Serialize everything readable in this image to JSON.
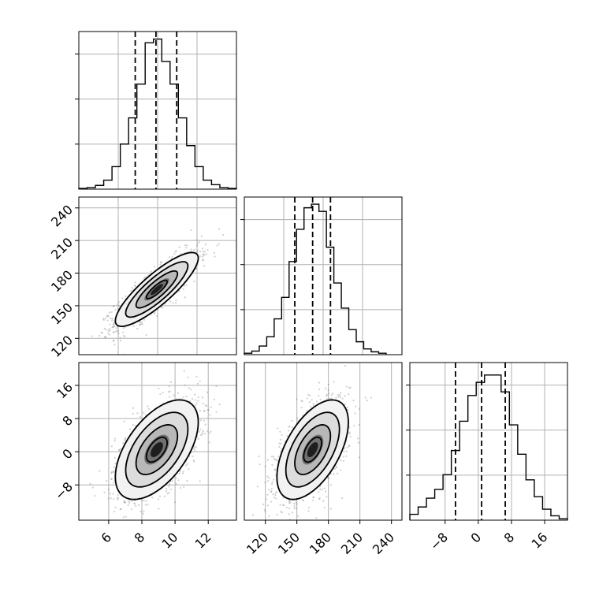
{
  "chart_data": [
    {
      "type": "histogram",
      "variable": "x",
      "bin_start": 4.2,
      "bin_width": 0.5,
      "counts": [
        1,
        2,
        5,
        12,
        30,
        60,
        95,
        140,
        195,
        200,
        170,
        140,
        95,
        58,
        30,
        12,
        6,
        2,
        1
      ],
      "quantile_lines": [
        7.6,
        8.85,
        10.1
      ],
      "xlim": [
        4.2,
        13.7
      ],
      "ylim": [
        0,
        210
      ],
      "x_ticks": [],
      "grid": true
    },
    {
      "type": "histogram",
      "variable": "y",
      "bin_start": 100,
      "bin_width": 7.1,
      "counts": [
        2,
        5,
        12,
        25,
        50,
        80,
        130,
        175,
        205,
        210,
        200,
        150,
        100,
        65,
        35,
        18,
        8,
        4,
        2
      ],
      "quantile_lines": [
        148,
        165,
        182
      ],
      "xlim": [
        100,
        250
      ],
      "ylim": [
        0,
        220
      ],
      "x_ticks": [],
      "grid": true
    },
    {
      "type": "histogram",
      "variable": "z",
      "bin_start": -16.5,
      "bin_width": 2.0,
      "counts": [
        8,
        18,
        30,
        42,
        62,
        95,
        135,
        170,
        188,
        198,
        198,
        175,
        130,
        90,
        55,
        32,
        15,
        6,
        2
      ],
      "quantile_lines": [
        -5.5,
        0.8,
        6.5
      ],
      "xlim": [
        -16.5,
        21.5
      ],
      "ylim": [
        0,
        215
      ],
      "x_ticks": [
        "−8",
        "0",
        "8",
        "16"
      ],
      "x_tick_values": [
        -8,
        0,
        8,
        16
      ],
      "grid": true
    },
    {
      "type": "scatter-density",
      "x_variable": "x",
      "y_variable": "y",
      "mean": [
        8.9,
        165
      ],
      "std": [
        1.25,
        17
      ],
      "correlation": 0.85,
      "xlim": [
        4.2,
        13.7
      ],
      "ylim": [
        105,
        250
      ],
      "x_ticks": [],
      "y_ticks": [
        "120",
        "150",
        "180",
        "210",
        "240"
      ],
      "y_tick_values": [
        120,
        150,
        180,
        210,
        240
      ],
      "contour_levels_sigma": [
        0.5,
        1.0,
        1.5,
        2.0
      ],
      "grid": true
    },
    {
      "type": "scatter-density",
      "x_variable": "x",
      "y_variable": "z",
      "mean": [
        8.9,
        0.5
      ],
      "std": [
        1.25,
        6
      ],
      "correlation": 0.55,
      "xlim": [
        4.2,
        13.7
      ],
      "ylim": [
        -16.5,
        21.5
      ],
      "x_ticks": [
        "6",
        "8",
        "10",
        "12"
      ],
      "x_tick_values": [
        6,
        8,
        10,
        12
      ],
      "y_ticks": [
        "−8",
        "0",
        "8",
        "16"
      ],
      "y_tick_values": [
        -8,
        0,
        8,
        16
      ],
      "contour_levels_sigma": [
        0.5,
        1.0,
        1.5,
        2.0
      ],
      "grid": true
    },
    {
      "type": "scatter-density",
      "x_variable": "y",
      "y_variable": "z",
      "mean": [
        165,
        0.5
      ],
      "std": [
        17,
        6
      ],
      "correlation": 0.55,
      "xlim": [
        100,
        250
      ],
      "ylim": [
        -16.5,
        21.5
      ],
      "x_ticks": [
        "120",
        "150",
        "180",
        "210",
        "240"
      ],
      "x_tick_values": [
        120,
        150,
        180,
        210,
        240
      ],
      "y_ticks": [],
      "contour_levels_sigma": [
        0.5,
        1.0,
        1.5,
        2.0
      ],
      "grid": true
    }
  ],
  "colors": {
    "line": "#000000",
    "grid": "#b0b0b0",
    "points": "#777777",
    "background": "#ffffff"
  }
}
